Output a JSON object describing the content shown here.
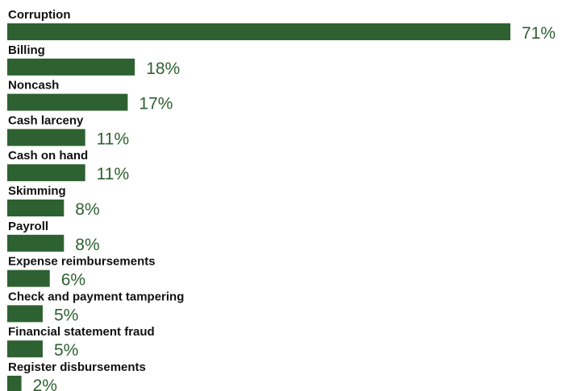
{
  "chart_data": {
    "type": "bar",
    "orientation": "horizontal",
    "categories": [
      "Corruption",
      "Billing",
      "Noncash",
      "Cash larceny",
      "Cash on hand",
      "Skimming",
      "Payroll",
      "Expense reimbursements",
      "Check and payment tampering",
      "Financial statement fraud",
      "Register disbursements"
    ],
    "values": [
      71,
      18,
      17,
      11,
      11,
      8,
      8,
      6,
      5,
      5,
      2
    ],
    "value_labels": [
      "71%",
      "18%",
      "17%",
      "11%",
      "11%",
      "8%",
      "8%",
      "6%",
      "5%",
      "5%",
      "2%"
    ],
    "unit": "%",
    "xlim": [
      0,
      71
    ],
    "grid": false,
    "legend": "none"
  },
  "colors": {
    "bar": "#2e6131",
    "value_text": "#2e6131",
    "label_text": "#111111",
    "background": "#ffffff"
  }
}
